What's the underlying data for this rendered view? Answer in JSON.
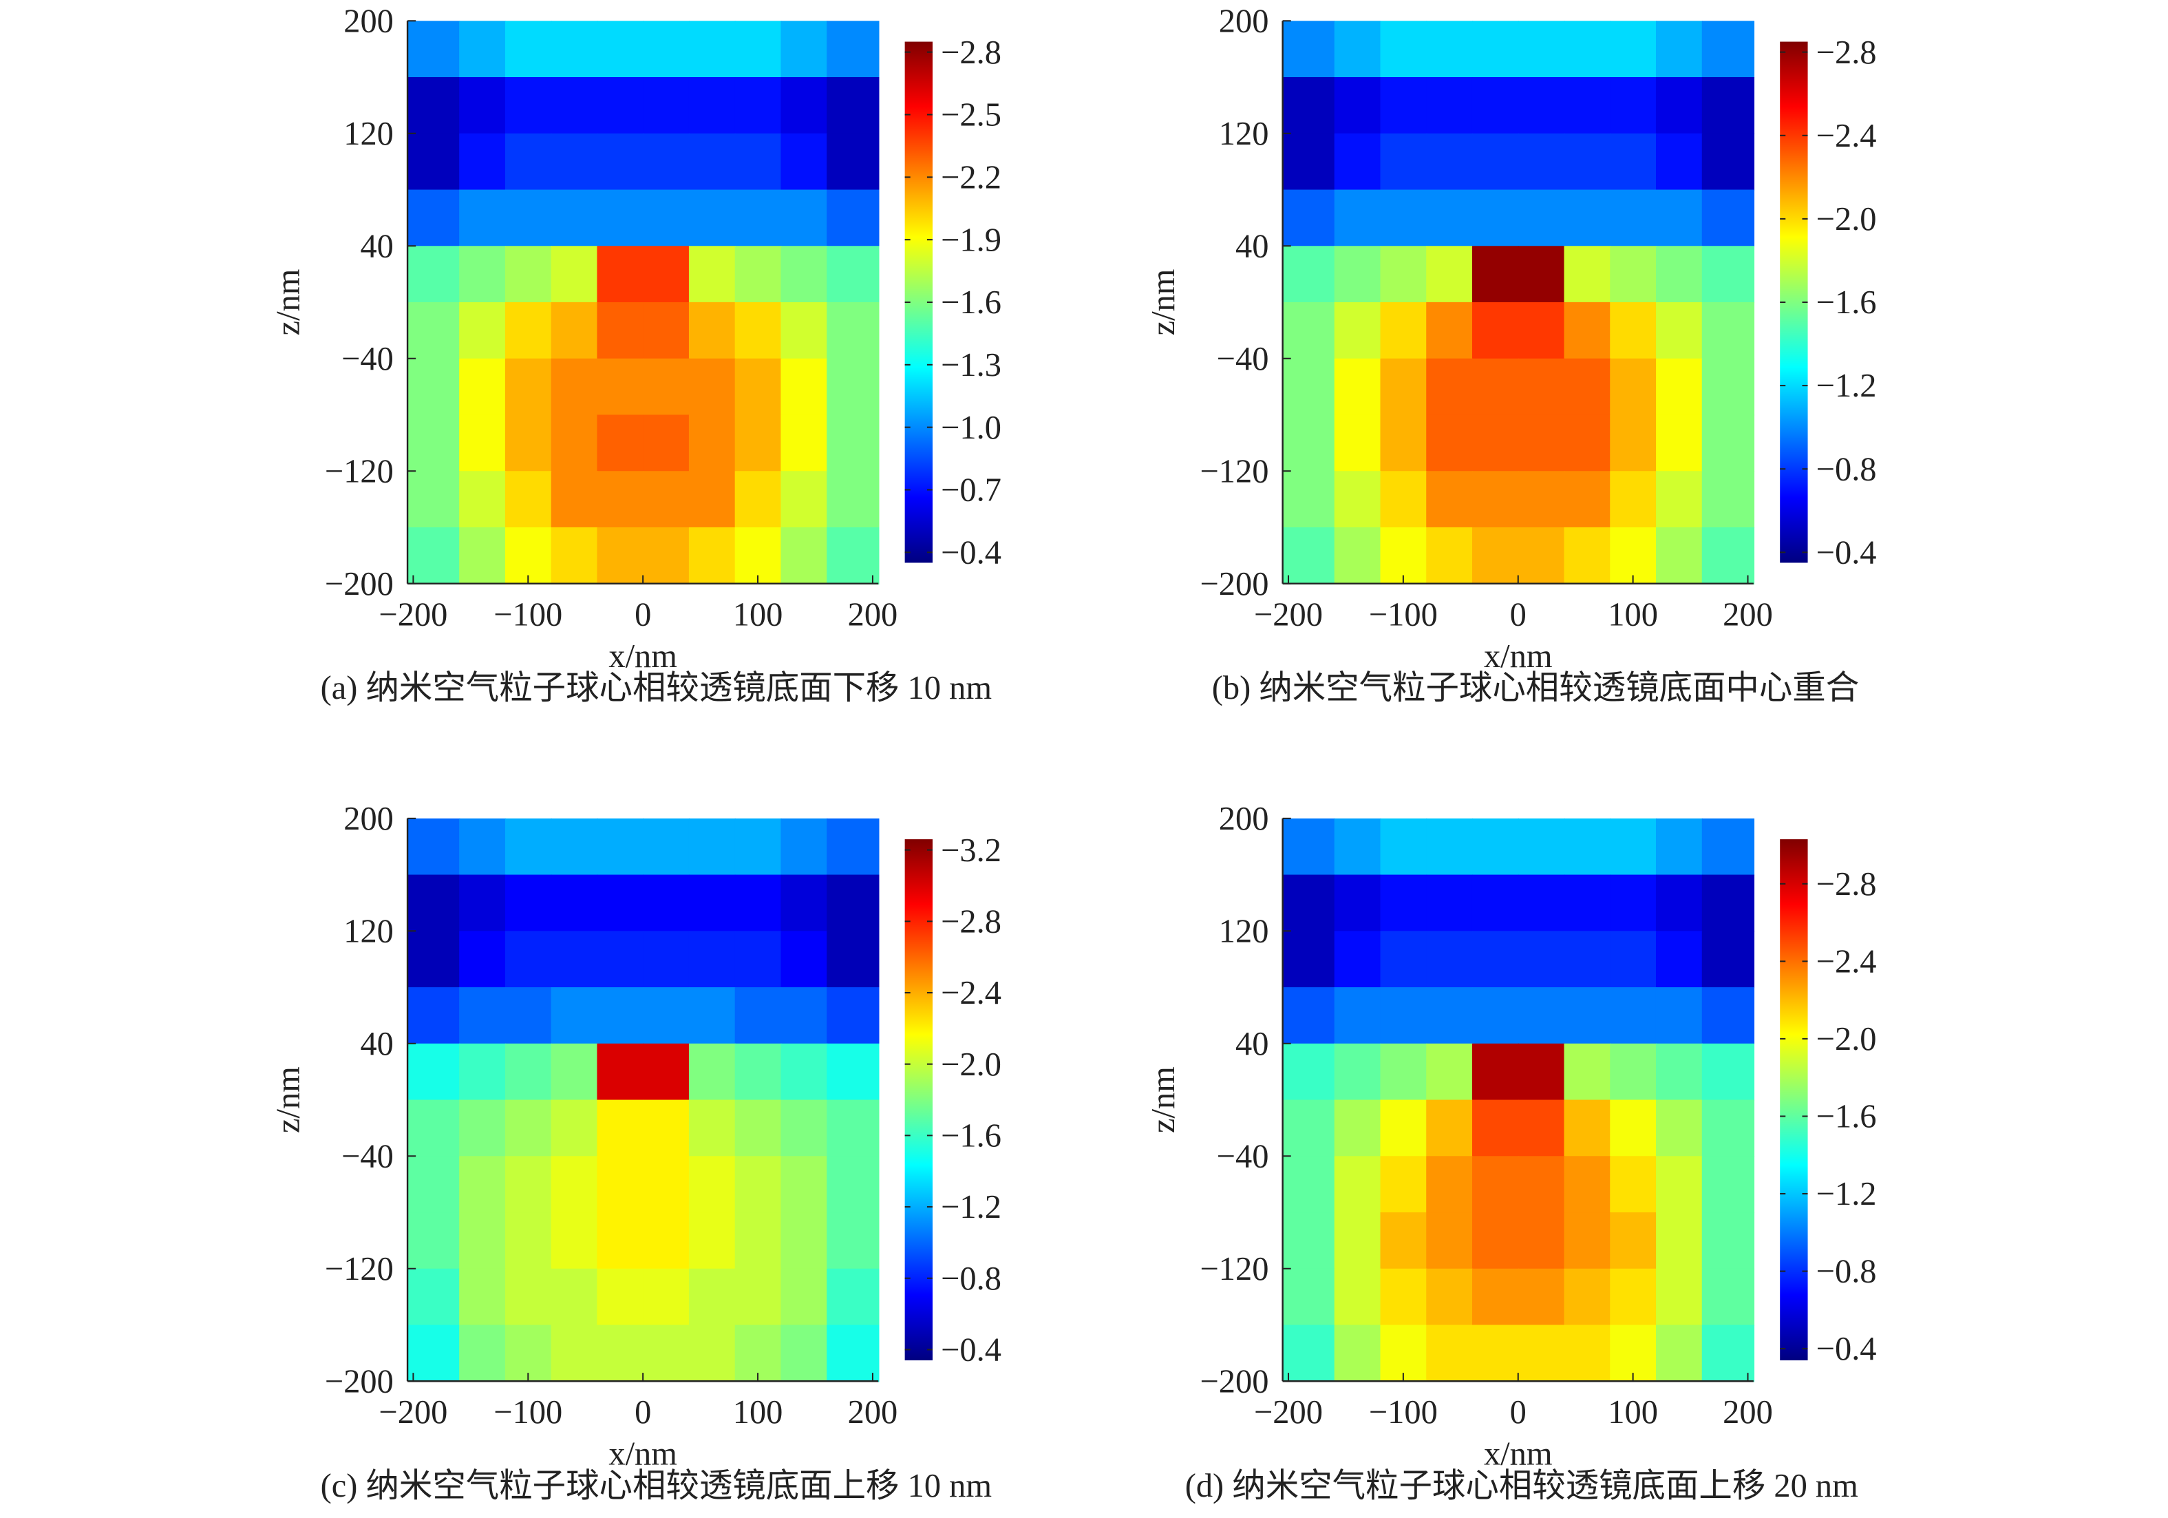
{
  "chart_data": [
    {
      "type": "heatmap",
      "title": "(a) 纳米空气粒子球心相较透镜底面下移 10 nm",
      "xlabel": "x/nm",
      "ylabel": "z/nm",
      "colormap": "jet",
      "x": [
        -180,
        -140,
        -100,
        -60,
        -20,
        20,
        60,
        100,
        140,
        180
      ],
      "y": [
        180,
        140,
        100,
        60,
        20,
        -20,
        -60,
        -100,
        -140,
        -180
      ],
      "values": [
        [
          -1.0,
          -1.1,
          -1.2,
          -1.2,
          -1.2,
          -1.2,
          -1.2,
          -1.2,
          -1.1,
          -1.0
        ],
        [
          -0.5,
          -0.6,
          -0.7,
          -0.7,
          -0.7,
          -0.7,
          -0.7,
          -0.7,
          -0.6,
          -0.5
        ],
        [
          -0.5,
          -0.7,
          -0.8,
          -0.8,
          -0.8,
          -0.8,
          -0.8,
          -0.8,
          -0.7,
          -0.5
        ],
        [
          -0.9,
          -1.0,
          -1.0,
          -1.0,
          -1.0,
          -1.0,
          -1.0,
          -1.0,
          -1.0,
          -0.9
        ],
        [
          -1.5,
          -1.6,
          -1.7,
          -1.8,
          -2.4,
          -2.4,
          -1.8,
          -1.7,
          -1.6,
          -1.5
        ],
        [
          -1.6,
          -1.8,
          -2.0,
          -2.1,
          -2.3,
          -2.3,
          -2.1,
          -2.0,
          -1.8,
          -1.6
        ],
        [
          -1.6,
          -1.9,
          -2.1,
          -2.2,
          -2.2,
          -2.2,
          -2.2,
          -2.1,
          -1.9,
          -1.6
        ],
        [
          -1.6,
          -1.9,
          -2.1,
          -2.2,
          -2.3,
          -2.3,
          -2.2,
          -2.1,
          -1.9,
          -1.6
        ],
        [
          -1.6,
          -1.8,
          -2.0,
          -2.2,
          -2.2,
          -2.2,
          -2.2,
          -2.0,
          -1.8,
          -1.6
        ],
        [
          -1.5,
          -1.7,
          -1.9,
          -2.0,
          -2.1,
          -2.1,
          -2.0,
          -1.9,
          -1.7,
          -1.5
        ]
      ],
      "xlim": [
        -205,
        205
      ],
      "ylim": [
        -200,
        200
      ],
      "xticks": [
        {
          "value": -200,
          "label": "−200"
        },
        {
          "value": -100,
          "label": "−100"
        },
        0,
        100,
        200
      ],
      "yticks": [
        {
          "value": -200,
          "label": "−200"
        },
        {
          "value": -120,
          "label": "−120"
        },
        {
          "value": -40,
          "label": "−40"
        },
        40,
        120,
        200
      ],
      "clim": [
        -0.35,
        -2.85
      ],
      "cticks": [
        {
          "value": -0.4,
          "label": "−0.4"
        },
        {
          "value": -0.7,
          "label": "−0.7"
        },
        {
          "value": -1.0,
          "label": "−1.0"
        },
        {
          "value": -1.3,
          "label": "−1.3"
        },
        {
          "value": -1.6,
          "label": "−1.6"
        },
        {
          "value": -1.9,
          "label": "−1.9"
        },
        {
          "value": -2.2,
          "label": "−2.2"
        },
        {
          "value": -2.5,
          "label": "−2.5"
        },
        {
          "value": -2.8,
          "label": "−2.8"
        }
      ]
    },
    {
      "type": "heatmap",
      "title": "(b) 纳米空气粒子球心相较透镜底面中心重合",
      "xlabel": "x/nm",
      "ylabel": "z/nm",
      "colormap": "jet",
      "x": [
        -180,
        -140,
        -100,
        -60,
        -20,
        20,
        60,
        100,
        140,
        180
      ],
      "y": [
        180,
        140,
        100,
        60,
        20,
        -20,
        -60,
        -100,
        -140,
        -180
      ],
      "values": [
        [
          -1.0,
          -1.1,
          -1.2,
          -1.2,
          -1.2,
          -1.2,
          -1.2,
          -1.2,
          -1.1,
          -1.0
        ],
        [
          -0.5,
          -0.6,
          -0.7,
          -0.7,
          -0.7,
          -0.7,
          -0.7,
          -0.7,
          -0.6,
          -0.5
        ],
        [
          -0.5,
          -0.7,
          -0.8,
          -0.8,
          -0.8,
          -0.8,
          -0.8,
          -0.8,
          -0.7,
          -0.5
        ],
        [
          -0.9,
          -1.0,
          -1.0,
          -1.0,
          -1.0,
          -1.0,
          -1.0,
          -1.0,
          -1.0,
          -0.9
        ],
        [
          -1.5,
          -1.6,
          -1.7,
          -1.8,
          -2.8,
          -2.8,
          -1.8,
          -1.7,
          -1.6,
          -1.5
        ],
        [
          -1.6,
          -1.8,
          -2.0,
          -2.2,
          -2.4,
          -2.4,
          -2.2,
          -2.0,
          -1.8,
          -1.6
        ],
        [
          -1.6,
          -1.9,
          -2.1,
          -2.3,
          -2.3,
          -2.3,
          -2.3,
          -2.1,
          -1.9,
          -1.6
        ],
        [
          -1.6,
          -1.9,
          -2.1,
          -2.3,
          -2.3,
          -2.3,
          -2.3,
          -2.1,
          -1.9,
          -1.6
        ],
        [
          -1.6,
          -1.8,
          -2.0,
          -2.2,
          -2.2,
          -2.2,
          -2.2,
          -2.0,
          -1.8,
          -1.6
        ],
        [
          -1.5,
          -1.7,
          -1.9,
          -2.0,
          -2.1,
          -2.1,
          -2.0,
          -1.9,
          -1.7,
          -1.5
        ]
      ],
      "xlim": [
        -205,
        205
      ],
      "ylim": [
        -200,
        200
      ],
      "xticks": [
        {
          "value": -200,
          "label": "−200"
        },
        {
          "value": -100,
          "label": "−100"
        },
        0,
        100,
        200
      ],
      "yticks": [
        {
          "value": -200,
          "label": "−200"
        },
        {
          "value": -120,
          "label": "−120"
        },
        {
          "value": -40,
          "label": "−40"
        },
        40,
        120,
        200
      ],
      "clim": [
        -0.35,
        -2.85
      ],
      "cticks": [
        {
          "value": -0.4,
          "label": "−0.4"
        },
        {
          "value": -0.8,
          "label": "−0.8"
        },
        {
          "value": -1.2,
          "label": "−1.2"
        },
        {
          "value": -1.6,
          "label": "−1.6"
        },
        {
          "value": -2.0,
          "label": "−2.0"
        },
        {
          "value": -2.4,
          "label": "−2.4"
        },
        {
          "value": -2.8,
          "label": "−2.8"
        }
      ]
    },
    {
      "type": "heatmap",
      "title": "(c) 纳米空气粒子球心相较透镜底面上移 10 nm",
      "xlabel": "x/nm",
      "ylabel": "z/nm",
      "colormap": "jet",
      "x": [
        -180,
        -140,
        -100,
        -60,
        -20,
        20,
        60,
        100,
        140,
        180
      ],
      "y": [
        180,
        140,
        100,
        60,
        20,
        -20,
        -60,
        -100,
        -140,
        -180
      ],
      "values": [
        [
          -1.0,
          -1.1,
          -1.2,
          -1.2,
          -1.2,
          -1.2,
          -1.2,
          -1.2,
          -1.1,
          -1.0
        ],
        [
          -0.5,
          -0.6,
          -0.7,
          -0.7,
          -0.7,
          -0.7,
          -0.7,
          -0.7,
          -0.6,
          -0.5
        ],
        [
          -0.5,
          -0.7,
          -0.8,
          -0.8,
          -0.8,
          -0.8,
          -0.8,
          -0.8,
          -0.7,
          -0.5
        ],
        [
          -0.9,
          -1.0,
          -1.0,
          -1.1,
          -1.1,
          -1.1,
          -1.1,
          -1.0,
          -1.0,
          -0.9
        ],
        [
          -1.5,
          -1.6,
          -1.7,
          -1.8,
          -3.0,
          -3.0,
          -1.8,
          -1.7,
          -1.6,
          -1.5
        ],
        [
          -1.7,
          -1.8,
          -1.9,
          -2.0,
          -2.2,
          -2.2,
          -2.0,
          -1.9,
          -1.8,
          -1.7
        ],
        [
          -1.7,
          -1.9,
          -2.0,
          -2.1,
          -2.2,
          -2.2,
          -2.1,
          -2.0,
          -1.9,
          -1.7
        ],
        [
          -1.7,
          -1.9,
          -2.0,
          -2.1,
          -2.2,
          -2.2,
          -2.1,
          -2.0,
          -1.9,
          -1.7
        ],
        [
          -1.6,
          -1.9,
          -2.0,
          -2.0,
          -2.1,
          -2.1,
          -2.0,
          -2.0,
          -1.9,
          -1.6
        ],
        [
          -1.5,
          -1.8,
          -1.9,
          -2.0,
          -2.0,
          -2.0,
          -2.0,
          -1.9,
          -1.8,
          -1.5
        ]
      ],
      "xlim": [
        -205,
        205
      ],
      "ylim": [
        -200,
        200
      ],
      "xticks": [
        {
          "value": -200,
          "label": "−200"
        },
        {
          "value": -100,
          "label": "−100"
        },
        0,
        100,
        200
      ],
      "yticks": [
        {
          "value": -200,
          "label": "−200"
        },
        {
          "value": -120,
          "label": "−120"
        },
        {
          "value": -40,
          "label": "−40"
        },
        40,
        120,
        200
      ],
      "clim": [
        -0.34,
        -3.26
      ],
      "cticks": [
        {
          "value": -0.4,
          "label": "−0.4"
        },
        {
          "value": -0.8,
          "label": "−0.8"
        },
        {
          "value": -1.2,
          "label": "−1.2"
        },
        {
          "value": -1.6,
          "label": "−1.6"
        },
        {
          "value": -2.0,
          "label": "−2.0"
        },
        {
          "value": -2.4,
          "label": "−2.4"
        },
        {
          "value": -2.8,
          "label": "−2.8"
        },
        {
          "value": -3.2,
          "label": "−3.2"
        }
      ]
    },
    {
      "type": "heatmap",
      "title": "(d) 纳米空气粒子球心相较透镜底面上移 20 nm",
      "xlabel": "x/nm",
      "ylabel": "z/nm",
      "colormap": "jet",
      "x": [
        -180,
        -140,
        -100,
        -60,
        -20,
        20,
        60,
        100,
        140,
        180
      ],
      "y": [
        180,
        140,
        100,
        60,
        20,
        -20,
        -60,
        -100,
        -140,
        -180
      ],
      "values": [
        [
          -1.0,
          -1.1,
          -1.2,
          -1.2,
          -1.2,
          -1.2,
          -1.2,
          -1.2,
          -1.1,
          -1.0
        ],
        [
          -0.5,
          -0.6,
          -0.7,
          -0.7,
          -0.7,
          -0.7,
          -0.7,
          -0.7,
          -0.6,
          -0.5
        ],
        [
          -0.5,
          -0.7,
          -0.8,
          -0.8,
          -0.8,
          -0.8,
          -0.8,
          -0.8,
          -0.7,
          -0.5
        ],
        [
          -0.9,
          -1.0,
          -1.0,
          -1.0,
          -1.0,
          -1.0,
          -1.0,
          -1.0,
          -1.0,
          -0.9
        ],
        [
          -1.5,
          -1.6,
          -1.7,
          -1.8,
          -2.9,
          -2.9,
          -1.8,
          -1.7,
          -1.6,
          -1.5
        ],
        [
          -1.6,
          -1.8,
          -2.0,
          -2.2,
          -2.5,
          -2.5,
          -2.2,
          -2.0,
          -1.8,
          -1.6
        ],
        [
          -1.6,
          -1.9,
          -2.1,
          -2.3,
          -2.4,
          -2.4,
          -2.3,
          -2.1,
          -1.9,
          -1.6
        ],
        [
          -1.6,
          -1.9,
          -2.2,
          -2.3,
          -2.4,
          -2.4,
          -2.3,
          -2.2,
          -1.9,
          -1.6
        ],
        [
          -1.6,
          -1.9,
          -2.1,
          -2.2,
          -2.3,
          -2.3,
          -2.2,
          -2.1,
          -1.9,
          -1.6
        ],
        [
          -1.5,
          -1.8,
          -2.0,
          -2.1,
          -2.1,
          -2.1,
          -2.1,
          -2.0,
          -1.8,
          -1.5
        ]
      ],
      "xlim": [
        -205,
        205
      ],
      "ylim": [
        -200,
        200
      ],
      "xticks": [
        {
          "value": -200,
          "label": "−200"
        },
        {
          "value": -100,
          "label": "−100"
        },
        0,
        100,
        200
      ],
      "yticks": [
        {
          "value": -200,
          "label": "−200"
        },
        {
          "value": -120,
          "label": "−120"
        },
        {
          "value": -40,
          "label": "−40"
        },
        40,
        120,
        200
      ],
      "clim": [
        -0.34,
        -3.03
      ],
      "cticks": [
        {
          "value": -0.4,
          "label": "−0.4"
        },
        {
          "value": -0.8,
          "label": "−0.8"
        },
        {
          "value": -1.2,
          "label": "−1.2"
        },
        {
          "value": -1.6,
          "label": "−1.6"
        },
        {
          "value": -2.0,
          "label": "−2.0"
        },
        {
          "value": -2.4,
          "label": "−2.4"
        },
        {
          "value": -2.8,
          "label": "−2.8"
        }
      ]
    }
  ]
}
